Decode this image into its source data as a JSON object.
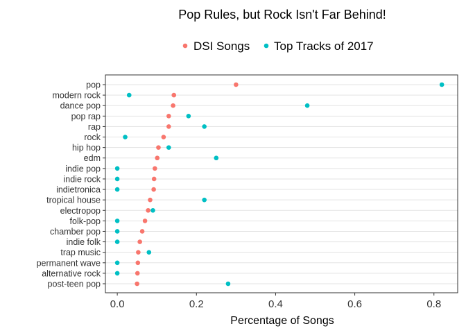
{
  "chart_data": {
    "type": "scatter",
    "title": "Pop Rules, but Rock Isn't Far Behind!",
    "xlabel": "Percentage of Songs",
    "ylabel": "",
    "xlim": [
      -0.03,
      0.86
    ],
    "x_ticks": [
      0.0,
      0.2,
      0.4,
      0.6,
      0.8
    ],
    "x_tick_labels": [
      "0.0",
      "0.2",
      "0.4",
      "0.6",
      "0.8"
    ],
    "grid": "horizontal",
    "legend_position": "top",
    "categories": [
      "pop",
      "modern rock",
      "dance pop",
      "pop rap",
      "rap",
      "rock",
      "hip hop",
      "edm",
      "indie pop",
      "indie rock",
      "indietronica",
      "tropical house",
      "electropop",
      "folk-pop",
      "chamber pop",
      "indie folk",
      "trap music",
      "permanent wave",
      "alternative rock",
      "post-teen pop"
    ],
    "series": [
      {
        "name": "DSI Songs",
        "color": "#F8766D",
        "values": [
          0.3,
          0.143,
          0.141,
          0.13,
          0.13,
          0.117,
          0.104,
          0.101,
          0.095,
          0.093,
          0.092,
          0.083,
          0.078,
          0.07,
          0.063,
          0.057,
          0.053,
          0.052,
          0.051,
          0.05
        ]
      },
      {
        "name": "Top Tracks of 2017",
        "color": "#00BFC4",
        "values": [
          0.82,
          0.03,
          0.48,
          0.18,
          0.22,
          0.02,
          0.13,
          0.25,
          0.0,
          0.0,
          0.0,
          0.22,
          0.09,
          0.0,
          0.0,
          0.0,
          0.08,
          0.0,
          0.0,
          0.28
        ]
      }
    ]
  }
}
